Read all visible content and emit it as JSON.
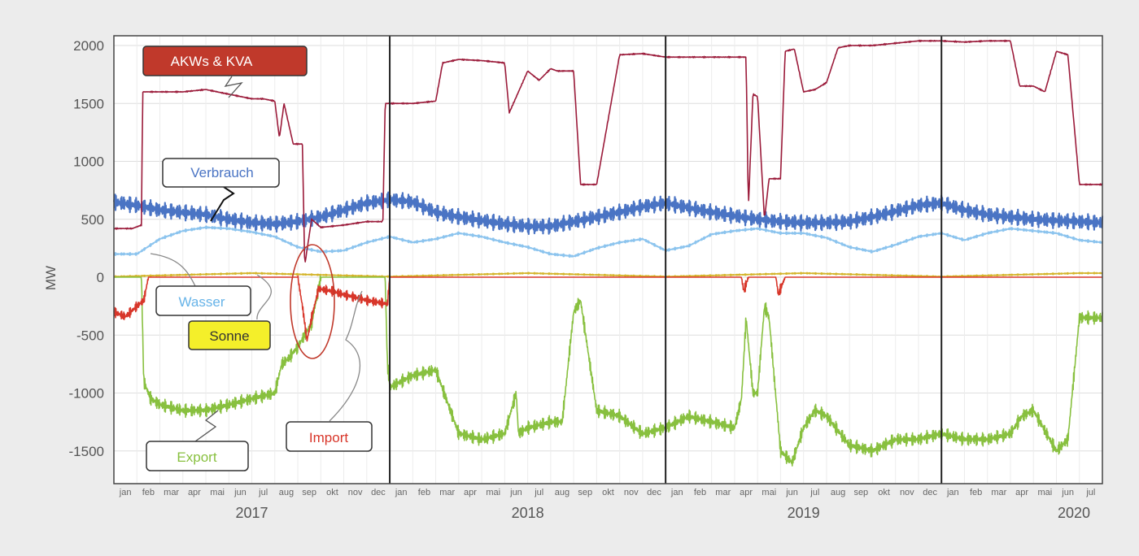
{
  "chart_data": {
    "type": "line",
    "ylabel": "MW",
    "ylim": [
      -1750,
      2100
    ],
    "yticks": [
      2000,
      1500,
      1000,
      500,
      0,
      -500,
      -1000,
      -1500
    ],
    "grid": true,
    "years": [
      "2017",
      "2018",
      "2019",
      "2020"
    ],
    "months": [
      "jan",
      "feb",
      "mar",
      "apr",
      "mai",
      "jun",
      "jul",
      "aug",
      "sep",
      "okt",
      "nov",
      "dec"
    ],
    "x_start_month": 0,
    "series": [
      {
        "name": "AKWs & KVA",
        "color": "#9b1b3a",
        "label_fill": "#c0392b",
        "label_text_color": "#ffffff",
        "x": [
          0,
          0.8,
          1.2,
          1.25,
          1.5,
          2,
          3,
          4,
          5,
          6,
          6.5,
          7,
          7.2,
          7.4,
          7.8,
          8.2,
          8.3,
          8.6,
          9,
          10,
          11,
          11.7,
          11.8,
          12,
          13,
          14,
          14.3,
          15,
          16,
          17,
          17.2,
          18,
          18.5,
          19,
          19.3,
          20,
          20.3,
          20.5,
          21,
          22,
          23,
          24,
          25,
          26,
          27,
          27.5,
          27.6,
          27.8,
          28,
          28.3,
          28.5,
          29,
          29.2,
          29.6,
          30,
          30.5,
          31,
          31.5,
          32,
          33,
          34,
          35,
          36,
          37,
          38,
          39,
          39.4,
          40,
          40.5,
          41,
          41.5,
          42,
          42.5,
          43
        ],
        "y": [
          420,
          420,
          450,
          1600,
          1600,
          1600,
          1600,
          1620,
          1580,
          1540,
          1540,
          1520,
          1200,
          1500,
          1150,
          1150,
          100,
          500,
          430,
          450,
          480,
          480,
          1500,
          1500,
          1500,
          1520,
          1850,
          1880,
          1870,
          1850,
          1420,
          1780,
          1700,
          1800,
          1780,
          1780,
          800,
          800,
          800,
          1920,
          1930,
          1900,
          1900,
          1900,
          1900,
          1900,
          600,
          1580,
          1560,
          500,
          850,
          850,
          1950,
          1970,
          1600,
          1620,
          1680,
          1980,
          2000,
          2000,
          2020,
          2040,
          2040,
          2030,
          2040,
          2040,
          1650,
          1650,
          1600,
          1950,
          1920,
          800,
          800,
          800
        ]
      },
      {
        "name": "Verbrauch",
        "color": "#4a74c4",
        "label_fill": "#ffffff",
        "label_text_color": "#4a74c4",
        "x": [
          0,
          1,
          2,
          3,
          4,
          5,
          6,
          7,
          8,
          9,
          10,
          11,
          12,
          13,
          14,
          15,
          16,
          17,
          18,
          19,
          20,
          21,
          22,
          23,
          24,
          25,
          26,
          27,
          28,
          29,
          30,
          31,
          32,
          33,
          34,
          35,
          36,
          37,
          38,
          39,
          40,
          41,
          42,
          43
        ],
        "y": [
          650,
          620,
          580,
          560,
          540,
          500,
          470,
          460,
          480,
          520,
          580,
          640,
          670,
          650,
          560,
          520,
          490,
          460,
          440,
          440,
          480,
          520,
          560,
          610,
          640,
          600,
          560,
          530,
          500,
          480,
          470,
          470,
          480,
          520,
          570,
          620,
          640,
          580,
          540,
          520,
          500,
          490,
          480,
          470
        ]
      },
      {
        "name": "Wasser",
        "color": "#8cc4ee",
        "label_fill": "#ffffff",
        "label_text_color": "#66b3e8",
        "x": [
          0,
          1,
          2,
          3,
          4,
          5,
          6,
          7,
          8,
          9,
          10,
          11,
          12,
          13,
          14,
          15,
          16,
          17,
          18,
          19,
          20,
          21,
          22,
          23,
          24,
          25,
          26,
          27,
          28,
          29,
          30,
          31,
          32,
          33,
          34,
          35,
          36,
          37,
          38,
          39,
          40,
          41,
          42,
          43
        ],
        "y": [
          200,
          200,
          330,
          400,
          430,
          420,
          390,
          350,
          260,
          220,
          230,
          300,
          350,
          300,
          330,
          380,
          350,
          300,
          260,
          200,
          180,
          250,
          300,
          330,
          230,
          270,
          370,
          400,
          420,
          380,
          380,
          340,
          260,
          220,
          280,
          350,
          380,
          320,
          380,
          420,
          400,
          380,
          320,
          300
        ]
      },
      {
        "name": "Sonne",
        "color": "#d4b42a",
        "label_fill": "#f4ef2a",
        "label_text_color": "#333333",
        "x": [
          0,
          3,
          6,
          9,
          12,
          15,
          18,
          21,
          24,
          27,
          30,
          33,
          36,
          39,
          42,
          43
        ],
        "y": [
          5,
          20,
          35,
          20,
          5,
          20,
          35,
          20,
          5,
          20,
          35,
          20,
          5,
          20,
          35,
          35
        ]
      },
      {
        "name": "Import",
        "color": "#d8362a",
        "label_fill": "#ffffff",
        "label_text_color": "#d8362a",
        "x": [
          0,
          0.5,
          1,
          1.3,
          1.5,
          2,
          4,
          6,
          7,
          8,
          8.2,
          8.4,
          8.6,
          8.9,
          9.5,
          10,
          11,
          11.9,
          12,
          27,
          27.3,
          27.4,
          27.6,
          28.5,
          28.8,
          28.9,
          29.2,
          43
        ],
        "y": [
          -300,
          -340,
          -250,
          -200,
          0,
          0,
          0,
          0,
          0,
          0,
          -250,
          -550,
          -350,
          -100,
          -120,
          -150,
          -200,
          -230,
          0,
          0,
          0,
          -120,
          0,
          0,
          0,
          -150,
          0,
          0
        ]
      },
      {
        "name": "Export",
        "color": "#88c03f",
        "label_fill": "#ffffff",
        "label_text_color": "#88c03f",
        "x": [
          0,
          1.2,
          1.3,
          1.6,
          2,
          3,
          4,
          5,
          6,
          7,
          7.3,
          7.6,
          8,
          8.6,
          9,
          9.5,
          11,
          11.8,
          11.9,
          12,
          13,
          14,
          15,
          16,
          17,
          17.5,
          17.6,
          18,
          19,
          19.5,
          20,
          20.3,
          21,
          22,
          23,
          24,
          25,
          26,
          27,
          27.3,
          27.5,
          27.8,
          28,
          28.3,
          28.5,
          29,
          29.5,
          30,
          30.5,
          31,
          32,
          33,
          34,
          35,
          36,
          37,
          38,
          39,
          39.5,
          40,
          41,
          41.5,
          42,
          43
        ],
        "y": [
          0,
          0,
          -900,
          -1050,
          -1100,
          -1150,
          -1150,
          -1100,
          -1050,
          -1000,
          -750,
          -700,
          -600,
          -400,
          0,
          0,
          0,
          0,
          -750,
          -950,
          -850,
          -800,
          -1350,
          -1400,
          -1350,
          -1000,
          -1350,
          -1300,
          -1250,
          -1250,
          -300,
          -200,
          -1150,
          -1200,
          -1350,
          -1300,
          -1200,
          -1250,
          -1300,
          -1050,
          -350,
          -1000,
          -1000,
          -250,
          -350,
          -1500,
          -1600,
          -1300,
          -1150,
          -1200,
          -1450,
          -1500,
          -1400,
          -1400,
          -1350,
          -1400,
          -1400,
          -1350,
          -1200,
          -1150,
          -1500,
          -1400,
          -350,
          -350
        ]
      }
    ],
    "labels": {
      "akw": "AKWs & KVA",
      "verbrauch": "Verbrauch",
      "wasser": "Wasser",
      "sonne": "Sonne",
      "import": "Import",
      "export": "Export"
    },
    "circle_color": "#c0392b"
  }
}
